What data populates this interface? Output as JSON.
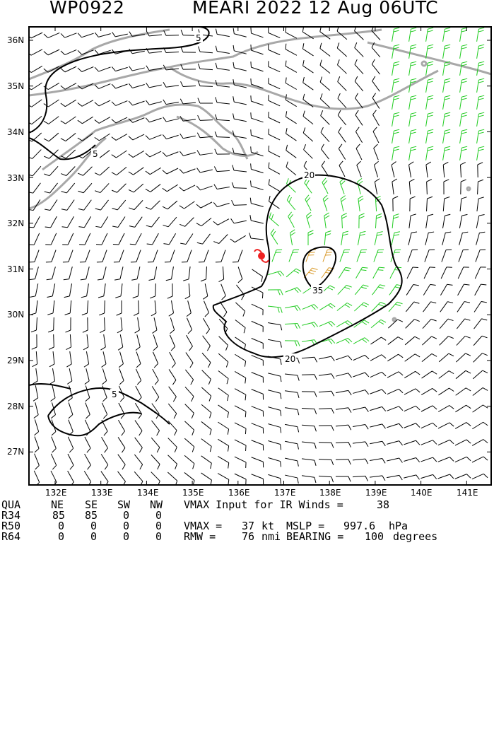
{
  "header": {
    "storm_id": "WP0922",
    "title": "MEARI 2022 12 Aug 06UTC"
  },
  "map": {
    "lat_labels": [
      "36N",
      "35N",
      "34N",
      "33N",
      "32N",
      "31N",
      "30N",
      "29N",
      "28N",
      "27N"
    ],
    "lon_labels": [
      "132E",
      "133E",
      "134E",
      "135E",
      "136E",
      "137E",
      "138E",
      "139E",
      "140E",
      "141E"
    ],
    "contour_labels": [
      "5",
      "5",
      "5",
      "20",
      "20",
      "35"
    ],
    "colors": {
      "land": "#a8a8a8",
      "calm": "#000000",
      "gale": "#22cc22",
      "storm": "#d99a2a",
      "center": "#ee2222"
    }
  },
  "table": {
    "headers": [
      "QUA",
      "NE",
      "SE",
      "SW",
      "NW"
    ],
    "rows": [
      {
        "label": "R34",
        "values": [
          "85",
          "85",
          "0",
          "0"
        ]
      },
      {
        "label": "R50",
        "values": [
          "0",
          "0",
          "0",
          "0"
        ]
      },
      {
        "label": "R64",
        "values": [
          "0",
          "0",
          "0",
          "0"
        ]
      }
    ],
    "vmax_input_text": "VMAX Input for IR Winds =",
    "vmax_input_value": "38",
    "vmax_text": "VMAX =",
    "vmax_value": "37",
    "vmax_unit": "kt",
    "mslp_text": "MSLP =",
    "mslp_value": "997.6",
    "mslp_unit": "hPa",
    "rmw_text": "RMW =",
    "rmw_value": "76",
    "rmw_unit": "nmi",
    "bearing_text": "BEARING =",
    "bearing_value": "100",
    "bearing_unit": "degrees"
  }
}
